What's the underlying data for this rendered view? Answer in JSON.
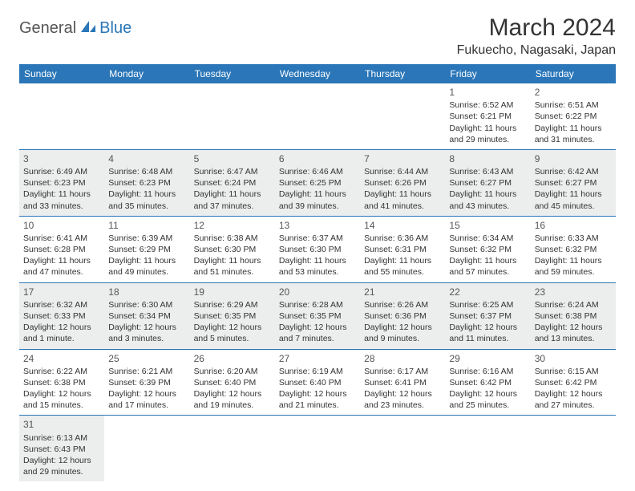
{
  "logo": {
    "part1": "General",
    "part2": "Blue"
  },
  "title": "March 2024",
  "location": "Fukuecho, Nagasaki, Japan",
  "colors": {
    "header_bg": "#2a76b8",
    "header_fg": "#ffffff",
    "shaded_bg": "#eceded",
    "border": "#2a76b8",
    "text": "#333333"
  },
  "day_names": [
    "Sunday",
    "Monday",
    "Tuesday",
    "Wednesday",
    "Thursday",
    "Friday",
    "Saturday"
  ],
  "weeks": [
    [
      {
        "blank": true
      },
      {
        "blank": true
      },
      {
        "blank": true
      },
      {
        "blank": true
      },
      {
        "blank": true
      },
      {
        "day": "1",
        "sunrise": "Sunrise: 6:52 AM",
        "sunset": "Sunset: 6:21 PM",
        "daylight": "Daylight: 11 hours and 29 minutes."
      },
      {
        "day": "2",
        "sunrise": "Sunrise: 6:51 AM",
        "sunset": "Sunset: 6:22 PM",
        "daylight": "Daylight: 11 hours and 31 minutes."
      }
    ],
    [
      {
        "day": "3",
        "shaded": true,
        "sunrise": "Sunrise: 6:49 AM",
        "sunset": "Sunset: 6:23 PM",
        "daylight": "Daylight: 11 hours and 33 minutes."
      },
      {
        "day": "4",
        "shaded": true,
        "sunrise": "Sunrise: 6:48 AM",
        "sunset": "Sunset: 6:23 PM",
        "daylight": "Daylight: 11 hours and 35 minutes."
      },
      {
        "day": "5",
        "shaded": true,
        "sunrise": "Sunrise: 6:47 AM",
        "sunset": "Sunset: 6:24 PM",
        "daylight": "Daylight: 11 hours and 37 minutes."
      },
      {
        "day": "6",
        "shaded": true,
        "sunrise": "Sunrise: 6:46 AM",
        "sunset": "Sunset: 6:25 PM",
        "daylight": "Daylight: 11 hours and 39 minutes."
      },
      {
        "day": "7",
        "shaded": true,
        "sunrise": "Sunrise: 6:44 AM",
        "sunset": "Sunset: 6:26 PM",
        "daylight": "Daylight: 11 hours and 41 minutes."
      },
      {
        "day": "8",
        "shaded": true,
        "sunrise": "Sunrise: 6:43 AM",
        "sunset": "Sunset: 6:27 PM",
        "daylight": "Daylight: 11 hours and 43 minutes."
      },
      {
        "day": "9",
        "shaded": true,
        "sunrise": "Sunrise: 6:42 AM",
        "sunset": "Sunset: 6:27 PM",
        "daylight": "Daylight: 11 hours and 45 minutes."
      }
    ],
    [
      {
        "day": "10",
        "sunrise": "Sunrise: 6:41 AM",
        "sunset": "Sunset: 6:28 PM",
        "daylight": "Daylight: 11 hours and 47 minutes."
      },
      {
        "day": "11",
        "sunrise": "Sunrise: 6:39 AM",
        "sunset": "Sunset: 6:29 PM",
        "daylight": "Daylight: 11 hours and 49 minutes."
      },
      {
        "day": "12",
        "sunrise": "Sunrise: 6:38 AM",
        "sunset": "Sunset: 6:30 PM",
        "daylight": "Daylight: 11 hours and 51 minutes."
      },
      {
        "day": "13",
        "sunrise": "Sunrise: 6:37 AM",
        "sunset": "Sunset: 6:30 PM",
        "daylight": "Daylight: 11 hours and 53 minutes."
      },
      {
        "day": "14",
        "sunrise": "Sunrise: 6:36 AM",
        "sunset": "Sunset: 6:31 PM",
        "daylight": "Daylight: 11 hours and 55 minutes."
      },
      {
        "day": "15",
        "sunrise": "Sunrise: 6:34 AM",
        "sunset": "Sunset: 6:32 PM",
        "daylight": "Daylight: 11 hours and 57 minutes."
      },
      {
        "day": "16",
        "sunrise": "Sunrise: 6:33 AM",
        "sunset": "Sunset: 6:32 PM",
        "daylight": "Daylight: 11 hours and 59 minutes."
      }
    ],
    [
      {
        "day": "17",
        "shaded": true,
        "sunrise": "Sunrise: 6:32 AM",
        "sunset": "Sunset: 6:33 PM",
        "daylight": "Daylight: 12 hours and 1 minute."
      },
      {
        "day": "18",
        "shaded": true,
        "sunrise": "Sunrise: 6:30 AM",
        "sunset": "Sunset: 6:34 PM",
        "daylight": "Daylight: 12 hours and 3 minutes."
      },
      {
        "day": "19",
        "shaded": true,
        "sunrise": "Sunrise: 6:29 AM",
        "sunset": "Sunset: 6:35 PM",
        "daylight": "Daylight: 12 hours and 5 minutes."
      },
      {
        "day": "20",
        "shaded": true,
        "sunrise": "Sunrise: 6:28 AM",
        "sunset": "Sunset: 6:35 PM",
        "daylight": "Daylight: 12 hours and 7 minutes."
      },
      {
        "day": "21",
        "shaded": true,
        "sunrise": "Sunrise: 6:26 AM",
        "sunset": "Sunset: 6:36 PM",
        "daylight": "Daylight: 12 hours and 9 minutes."
      },
      {
        "day": "22",
        "shaded": true,
        "sunrise": "Sunrise: 6:25 AM",
        "sunset": "Sunset: 6:37 PM",
        "daylight": "Daylight: 12 hours and 11 minutes."
      },
      {
        "day": "23",
        "shaded": true,
        "sunrise": "Sunrise: 6:24 AM",
        "sunset": "Sunset: 6:38 PM",
        "daylight": "Daylight: 12 hours and 13 minutes."
      }
    ],
    [
      {
        "day": "24",
        "sunrise": "Sunrise: 6:22 AM",
        "sunset": "Sunset: 6:38 PM",
        "daylight": "Daylight: 12 hours and 15 minutes."
      },
      {
        "day": "25",
        "sunrise": "Sunrise: 6:21 AM",
        "sunset": "Sunset: 6:39 PM",
        "daylight": "Daylight: 12 hours and 17 minutes."
      },
      {
        "day": "26",
        "sunrise": "Sunrise: 6:20 AM",
        "sunset": "Sunset: 6:40 PM",
        "daylight": "Daylight: 12 hours and 19 minutes."
      },
      {
        "day": "27",
        "sunrise": "Sunrise: 6:19 AM",
        "sunset": "Sunset: 6:40 PM",
        "daylight": "Daylight: 12 hours and 21 minutes."
      },
      {
        "day": "28",
        "sunrise": "Sunrise: 6:17 AM",
        "sunset": "Sunset: 6:41 PM",
        "daylight": "Daylight: 12 hours and 23 minutes."
      },
      {
        "day": "29",
        "sunrise": "Sunrise: 6:16 AM",
        "sunset": "Sunset: 6:42 PM",
        "daylight": "Daylight: 12 hours and 25 minutes."
      },
      {
        "day": "30",
        "sunrise": "Sunrise: 6:15 AM",
        "sunset": "Sunset: 6:42 PM",
        "daylight": "Daylight: 12 hours and 27 minutes."
      }
    ],
    [
      {
        "day": "31",
        "shaded": true,
        "sunrise": "Sunrise: 6:13 AM",
        "sunset": "Sunset: 6:43 PM",
        "daylight": "Daylight: 12 hours and 29 minutes."
      },
      {
        "blank": true
      },
      {
        "blank": true
      },
      {
        "blank": true
      },
      {
        "blank": true
      },
      {
        "blank": true
      },
      {
        "blank": true
      }
    ]
  ]
}
